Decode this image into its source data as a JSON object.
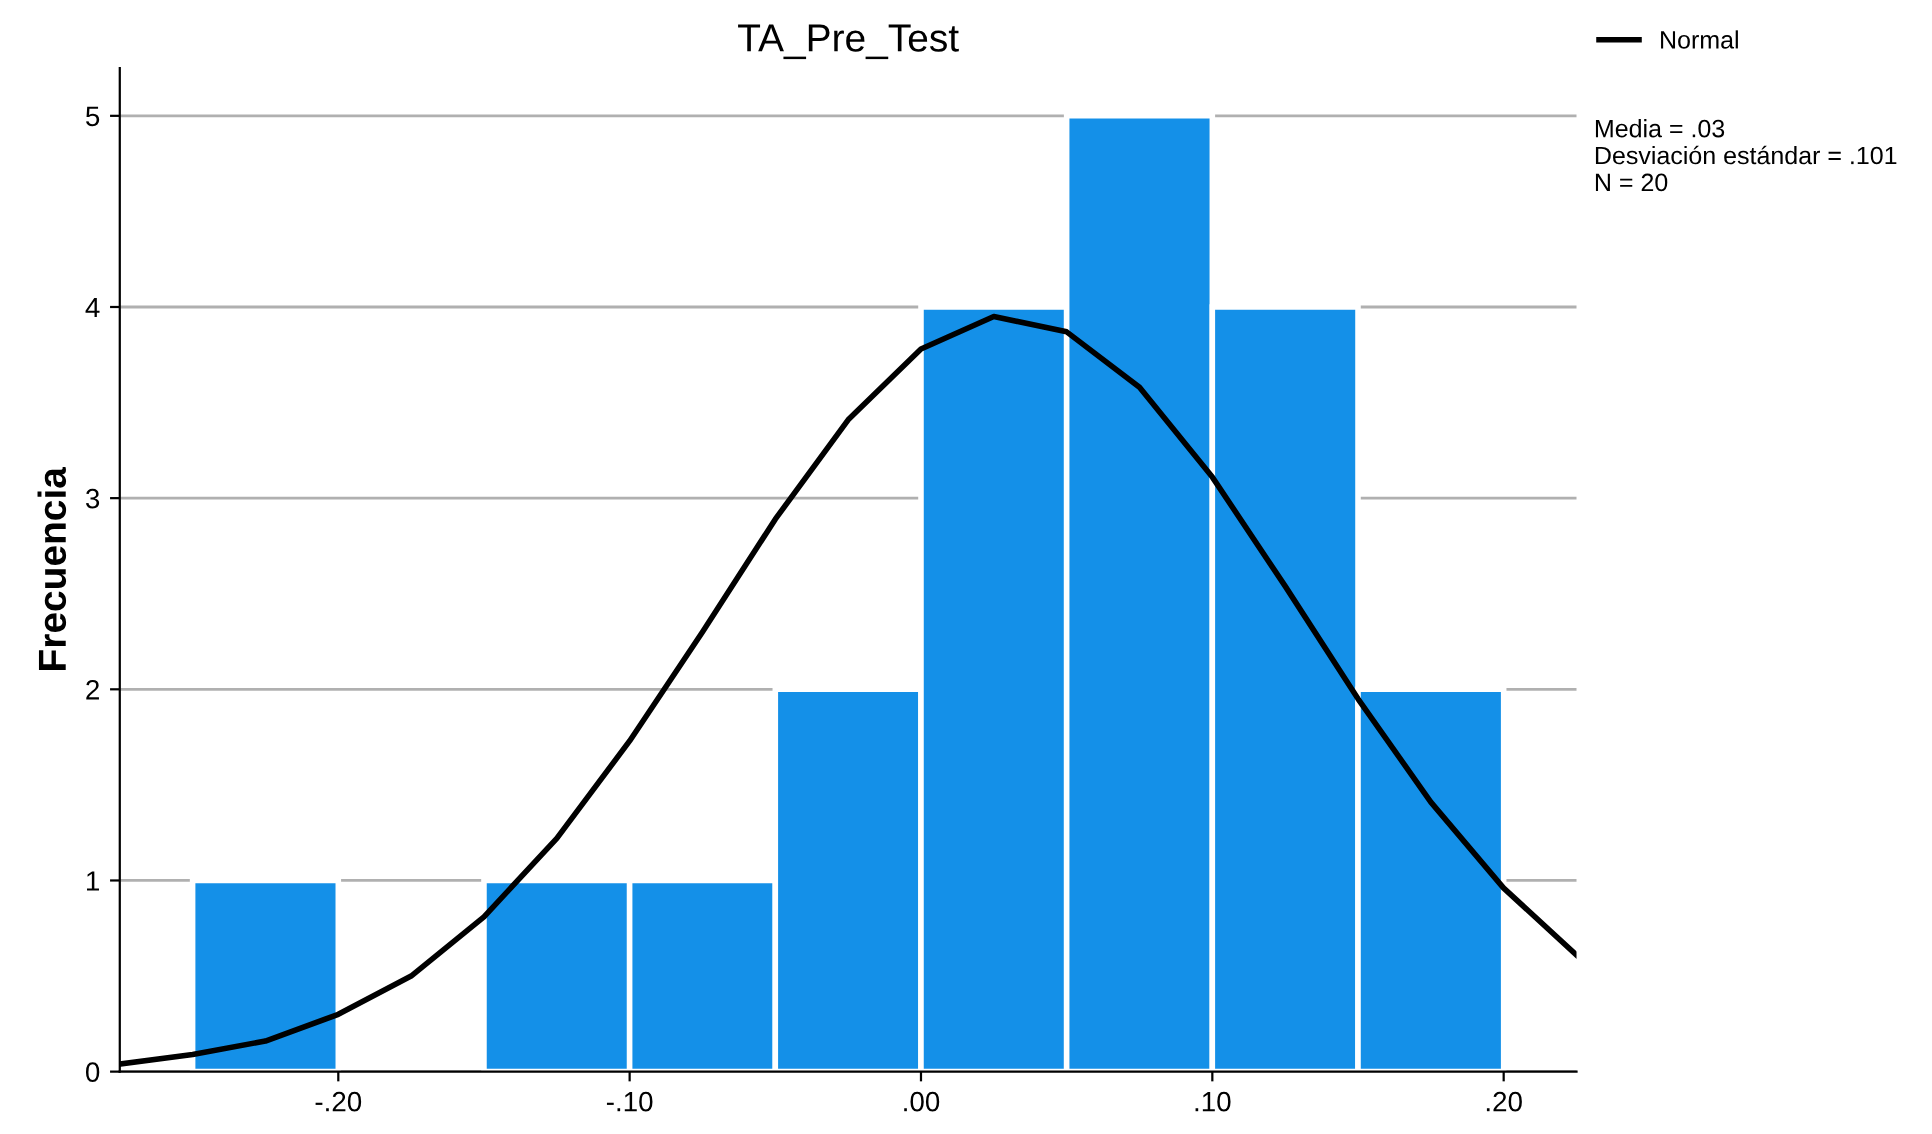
{
  "chart_data": {
    "type": "histogram",
    "title": "TA_Pre_Test",
    "ylabel": "Frecuencia",
    "bins": [
      -0.25,
      -0.2,
      -0.15,
      -0.1,
      -0.05,
      0.0,
      0.05,
      0.1,
      0.15,
      0.2
    ],
    "series": [
      {
        "color": "#1490e8",
        "values": [
          1,
          0,
          1,
          1,
          2,
          4,
          5,
          4,
          2
        ]
      },
      {
        "type": "line",
        "name": "Normal",
        "color": "#000000",
        "x": [
          -0.275,
          -0.25,
          -0.225,
          -0.2,
          -0.175,
          -0.15,
          -0.125,
          -0.1,
          -0.075,
          -0.05,
          -0.025,
          0.0,
          0.025,
          0.05,
          0.075,
          0.1,
          0.125,
          0.15,
          0.175,
          0.2,
          0.225
        ],
        "values": [
          0.04,
          0.09,
          0.16,
          0.3,
          0.5,
          0.81,
          1.22,
          1.73,
          2.3,
          2.89,
          3.41,
          3.78,
          3.95,
          3.87,
          3.58,
          3.11,
          2.54,
          1.95,
          1.41,
          0.96,
          0.61
        ]
      }
    ],
    "xlim": [
      -0.275,
      0.225
    ],
    "xticks": [
      {
        "value": -0.2,
        "label": "-.20"
      },
      {
        "value": -0.1,
        "label": "-.10"
      },
      {
        "value": 0.0,
        "label": ".00"
      },
      {
        "value": 0.1,
        "label": ".10"
      },
      {
        "value": 0.2,
        "label": ".20"
      }
    ],
    "ylim": [
      0,
      5.25
    ],
    "yticks": [
      0,
      1,
      2,
      3,
      4,
      5
    ],
    "grid": "y",
    "legend": "top right",
    "line_style": "solid",
    "marker": "none",
    "annotations": [
      "Media = .03\nDesviación estándar = .101\nN = 20"
    ]
  }
}
